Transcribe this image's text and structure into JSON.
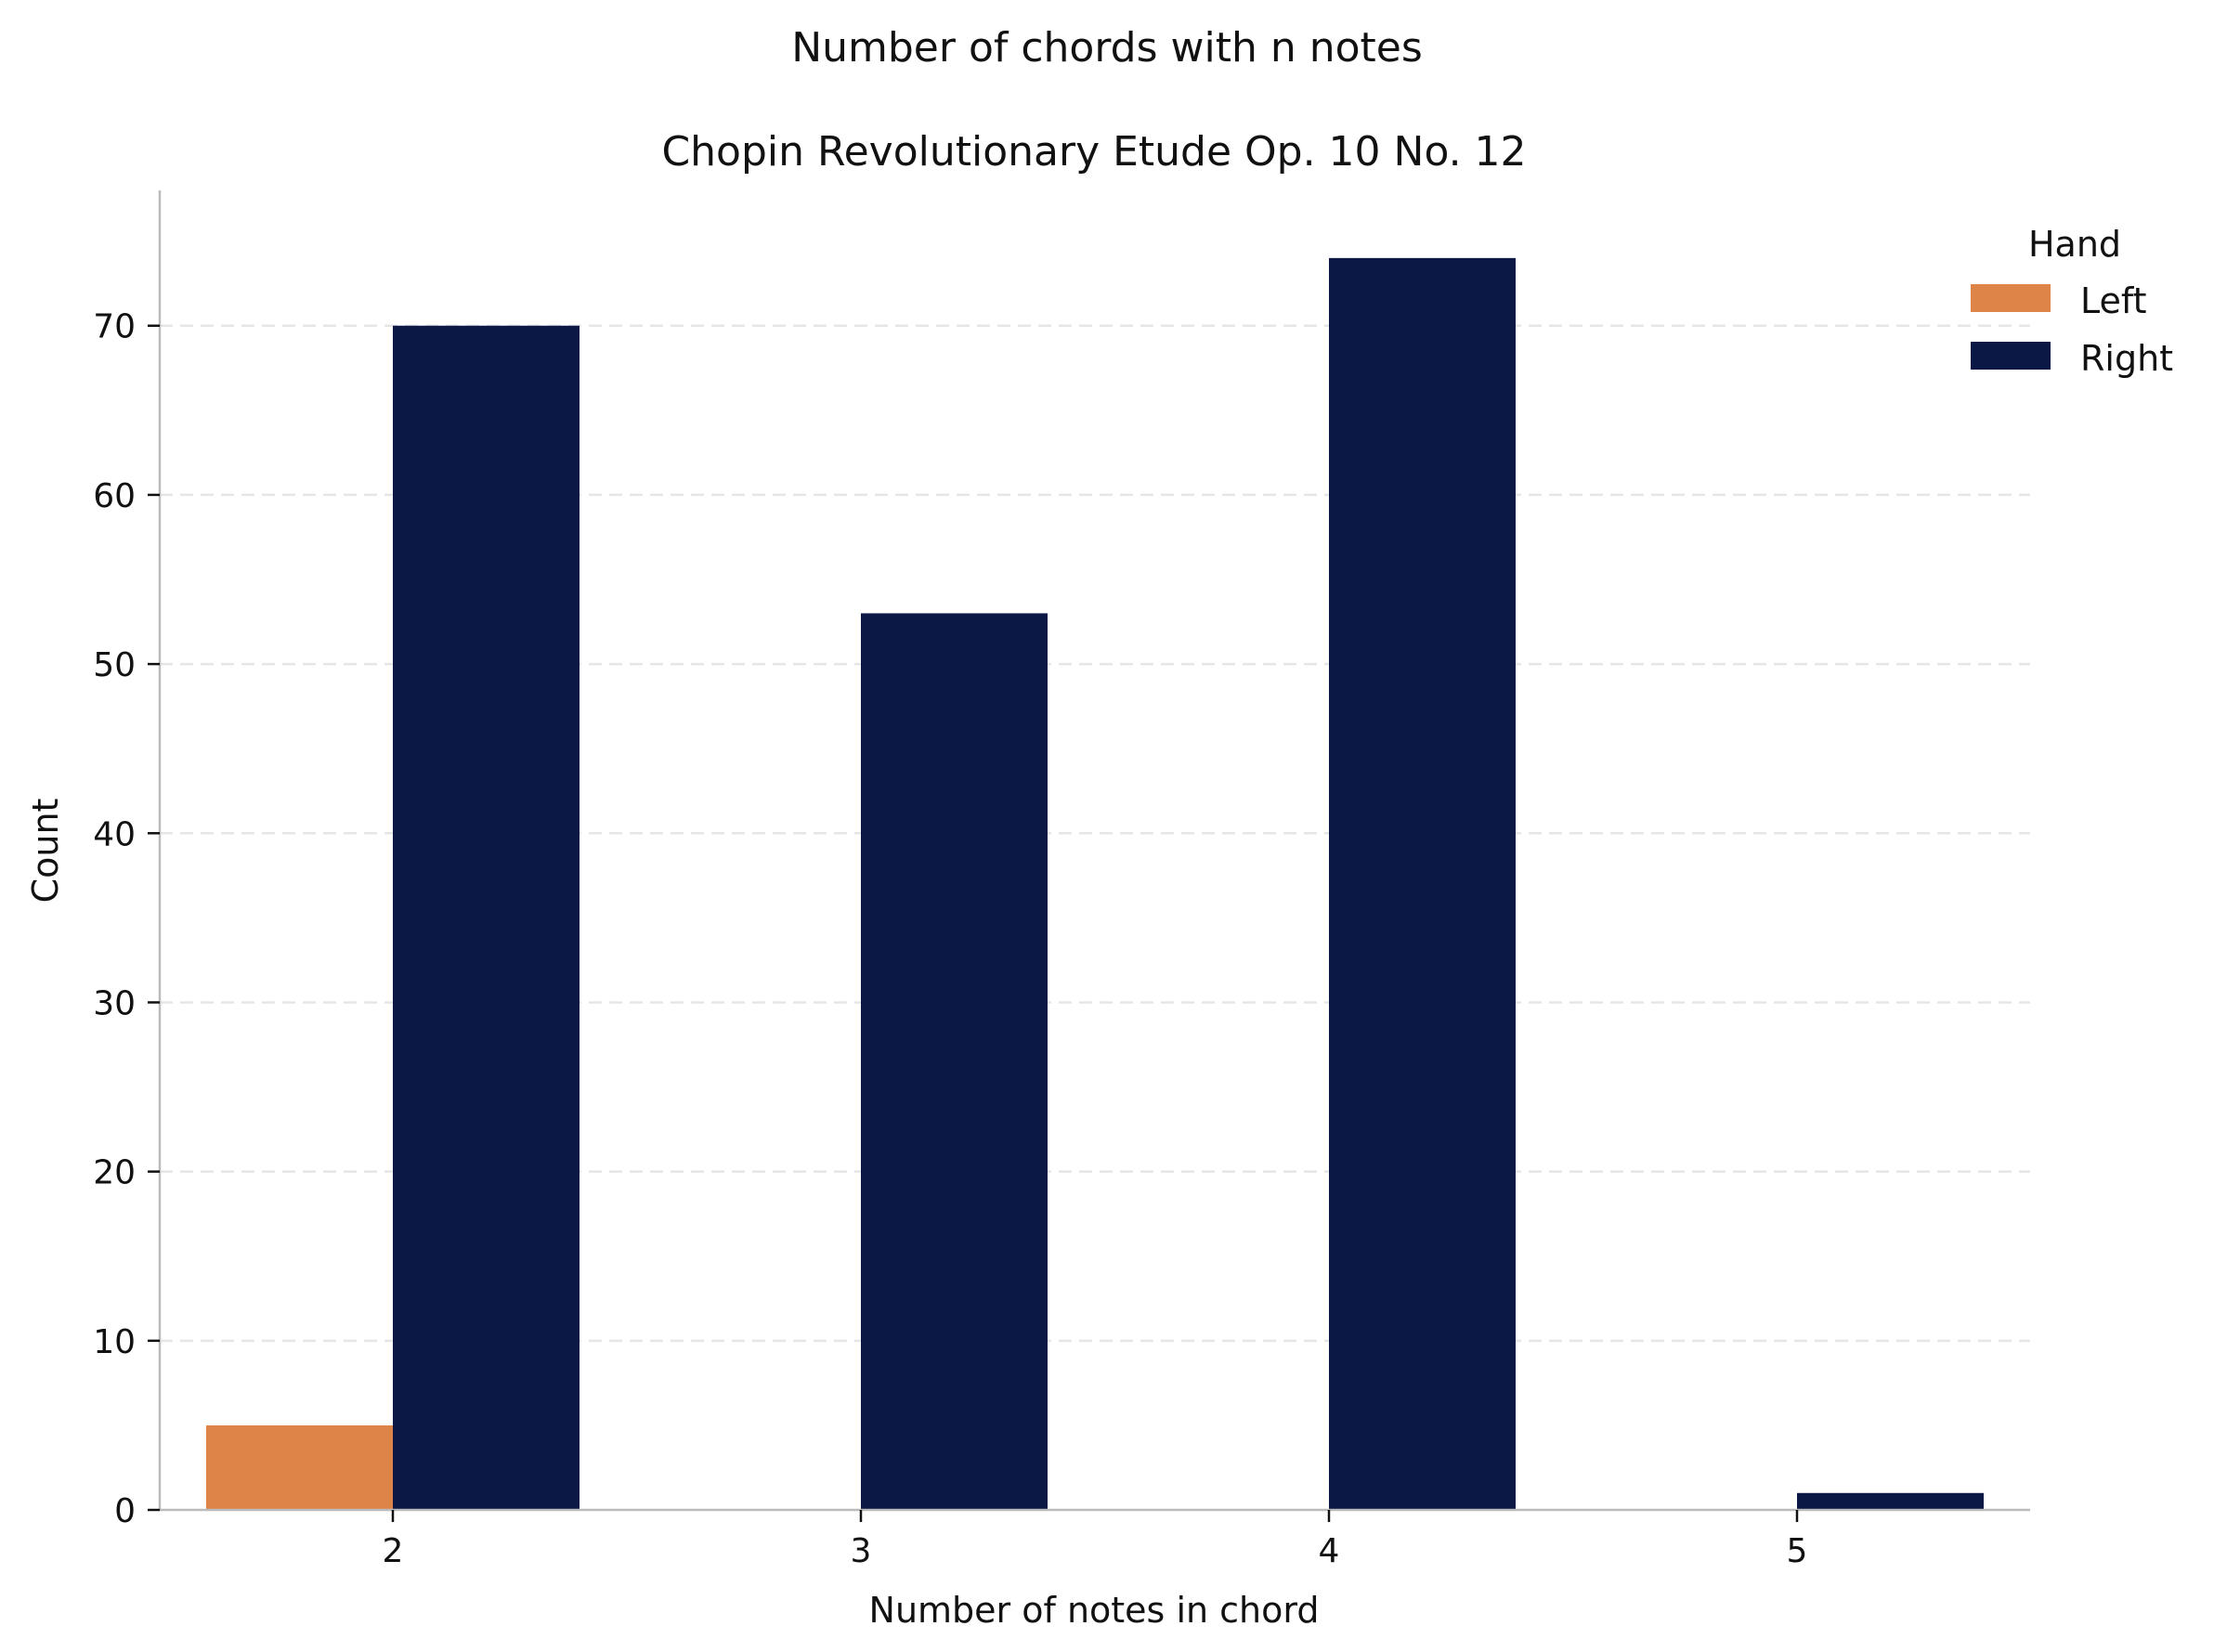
{
  "chart_data": {
    "type": "bar",
    "title": "Number of chords with n notes",
    "subtitle": "Chopin Revolutionary Etude Op. 10 No. 12",
    "xlabel": "Number of notes in chord",
    "ylabel": "Count",
    "categories": [
      "2",
      "3",
      "4",
      "5"
    ],
    "series": [
      {
        "name": "Left",
        "color": "#dd8449",
        "values": [
          5,
          0,
          0,
          0
        ]
      },
      {
        "name": "Right",
        "color": "#0b1744",
        "values": [
          70,
          53,
          74,
          1
        ]
      }
    ],
    "ylim": [
      0,
      78
    ],
    "yticks": [
      0,
      10,
      20,
      30,
      40,
      50,
      60,
      70
    ],
    "grid": "y-dashed",
    "legend": {
      "title": "Hand",
      "placement": "top-right"
    }
  }
}
